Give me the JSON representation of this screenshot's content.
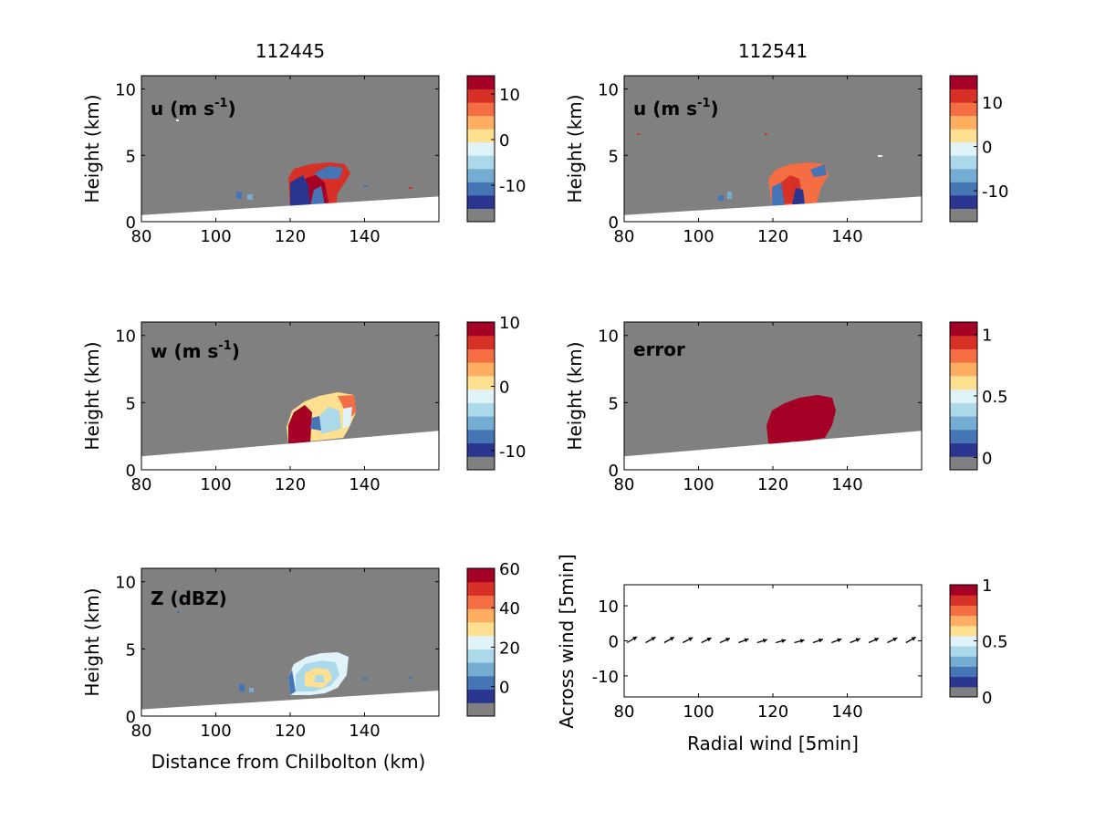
{
  "chart_data": [
    {
      "type": "heatmap",
      "title": "112445",
      "panel_label": "u (m s-1)",
      "panel_label_base": "u (m s",
      "panel_label_sup": "-1",
      "panel_label_end": ")",
      "xlabel": "",
      "ylabel": "Height (km)",
      "xlim": [
        80,
        160
      ],
      "ylim": [
        0,
        11
      ],
      "xticks": [
        "80",
        "100",
        "120",
        "140"
      ],
      "yticks": [
        "0",
        "5",
        "10"
      ],
      "colorbar": {
        "ticks": [
          "10",
          "0",
          "-10"
        ],
        "tick_values": [
          10,
          0,
          -10
        ],
        "range": [
          -18,
          14
        ]
      },
      "ground_line": [
        [
          80,
          0.5
        ],
        [
          160,
          1.9
        ]
      ]
    },
    {
      "type": "heatmap",
      "title": "112541",
      "panel_label": "u (m s-1)",
      "panel_label_base": "u (m s",
      "panel_label_sup": "-1",
      "panel_label_end": ")",
      "xlabel": "",
      "ylabel": "Height (km)",
      "xlim": [
        80,
        160
      ],
      "ylim": [
        0,
        11
      ],
      "xticks": [
        "80",
        "100",
        "120",
        "140"
      ],
      "yticks": [
        "0",
        "5",
        "10"
      ],
      "colorbar": {
        "ticks": [
          "10",
          "0",
          "-10"
        ],
        "tick_values": [
          10,
          0,
          -10
        ],
        "range": [
          -17,
          16
        ]
      },
      "ground_line": [
        [
          80,
          0.5
        ],
        [
          160,
          1.9
        ]
      ]
    },
    {
      "type": "heatmap",
      "panel_label": "w (m s-1)",
      "panel_label_base": "w (m s",
      "panel_label_sup": "-1",
      "panel_label_end": ")",
      "xlabel": "",
      "ylabel": "Height (km)",
      "xlim": [
        80,
        160
      ],
      "ylim": [
        0,
        11
      ],
      "xticks": [
        "80",
        "100",
        "120",
        "140"
      ],
      "yticks": [
        "0",
        "5",
        "10"
      ],
      "colorbar": {
        "ticks": [
          "10",
          "0",
          "-10"
        ],
        "tick_values": [
          10,
          0,
          -10
        ],
        "range": [
          -13,
          10
        ]
      },
      "ground_line": [
        [
          80,
          1.0
        ],
        [
          160,
          2.9
        ]
      ]
    },
    {
      "type": "heatmap",
      "panel_label": "error",
      "xlabel": "",
      "ylabel": "Height (km)",
      "xlim": [
        80,
        160
      ],
      "ylim": [
        0,
        11
      ],
      "xticks": [
        "80",
        "100",
        "120",
        "140"
      ],
      "yticks": [
        "0",
        "5",
        "10"
      ],
      "colorbar": {
        "ticks": [
          "1",
          "0.5",
          "0"
        ],
        "tick_values": [
          1,
          0.5,
          0
        ],
        "range": [
          -0.1,
          1.1
        ]
      },
      "ground_line": [
        [
          80,
          1.0
        ],
        [
          160,
          2.9
        ]
      ]
    },
    {
      "type": "heatmap",
      "panel_label": "Z (dBZ)",
      "xlabel": "Distance from Chilbolton (km)",
      "ylabel": "Height (km)",
      "xlim": [
        80,
        160
      ],
      "ylim": [
        0,
        11
      ],
      "xticks": [
        "80",
        "100",
        "120",
        "140"
      ],
      "yticks": [
        "0",
        "5",
        "10"
      ],
      "colorbar": {
        "ticks": [
          "60",
          "40",
          "20",
          "0"
        ],
        "tick_values": [
          60,
          40,
          20,
          0
        ],
        "range": [
          -15,
          60
        ]
      },
      "ground_line": [
        [
          80,
          0.5
        ],
        [
          160,
          1.9
        ]
      ]
    },
    {
      "type": "scatter",
      "xlabel": "Radial wind [5min]",
      "ylabel": "Across wind [5min]",
      "xlim": [
        80,
        160
      ],
      "ylim": [
        -16,
        16
      ],
      "xticks": [
        "80",
        "100",
        "120",
        "140"
      ],
      "yticks": [
        "10",
        "0",
        "-10"
      ],
      "ytick_values": [
        10,
        0,
        -10
      ],
      "colorbar": {
        "ticks": [
          "1",
          "0.5",
          "0"
        ],
        "tick_values": [
          1,
          0.5,
          0
        ],
        "range": [
          0,
          1
        ]
      },
      "arrows": {
        "x": [
          82,
          87,
          92,
          97,
          102,
          107,
          112,
          117,
          122,
          127,
          132,
          137,
          142,
          147,
          152,
          157
        ],
        "dy": [
          0.9,
          0.8,
          0.8,
          0.7,
          0.6,
          0.5,
          0.3,
          0.1,
          0.0,
          0.0,
          0.2,
          0.3,
          0.4,
          0.5,
          0.6,
          0.8
        ]
      }
    }
  ],
  "colors": {
    "missing": "#808080",
    "colormap": [
      "#2a3590",
      "#4575b4",
      "#74add1",
      "#abd9e9",
      "#e0f3f8",
      "#fee090",
      "#fdae61",
      "#f46d43",
      "#d73027",
      "#a50026"
    ]
  }
}
